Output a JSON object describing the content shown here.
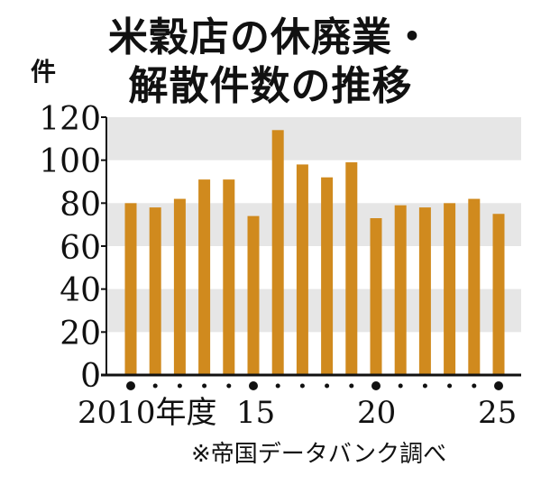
{
  "chart_data": {
    "type": "bar",
    "title_lines": [
      "米穀店の休廃業・",
      "解散件数の推移"
    ],
    "unit_label": "件",
    "x": [
      2010,
      2011,
      2012,
      2013,
      2014,
      2015,
      2016,
      2017,
      2018,
      2019,
      2020,
      2021,
      2022,
      2023,
      2024,
      2025
    ],
    "values": [
      80,
      78,
      82,
      91,
      91,
      74,
      114,
      98,
      92,
      99,
      73,
      79,
      78,
      80,
      82,
      75
    ],
    "ylim": [
      0,
      120
    ],
    "yticks": [
      0,
      20,
      40,
      60,
      80,
      100,
      120
    ],
    "xtick_labels": [
      {
        "year": 2010,
        "parts": [
          "2010",
          "年度"
        ]
      },
      {
        "year": 2015,
        "parts": [
          "15"
        ]
      },
      {
        "year": 2020,
        "parts": [
          "20"
        ]
      },
      {
        "year": 2025,
        "parts": [
          "25"
        ]
      }
    ],
    "major_tick_years": [
      2010,
      2015,
      2020,
      2025
    ],
    "source": "※帝国データバンク調べ",
    "bar_color": "#d08a1e",
    "band_color": "#e6e6e6",
    "grid": "alternating horizontal bands"
  }
}
